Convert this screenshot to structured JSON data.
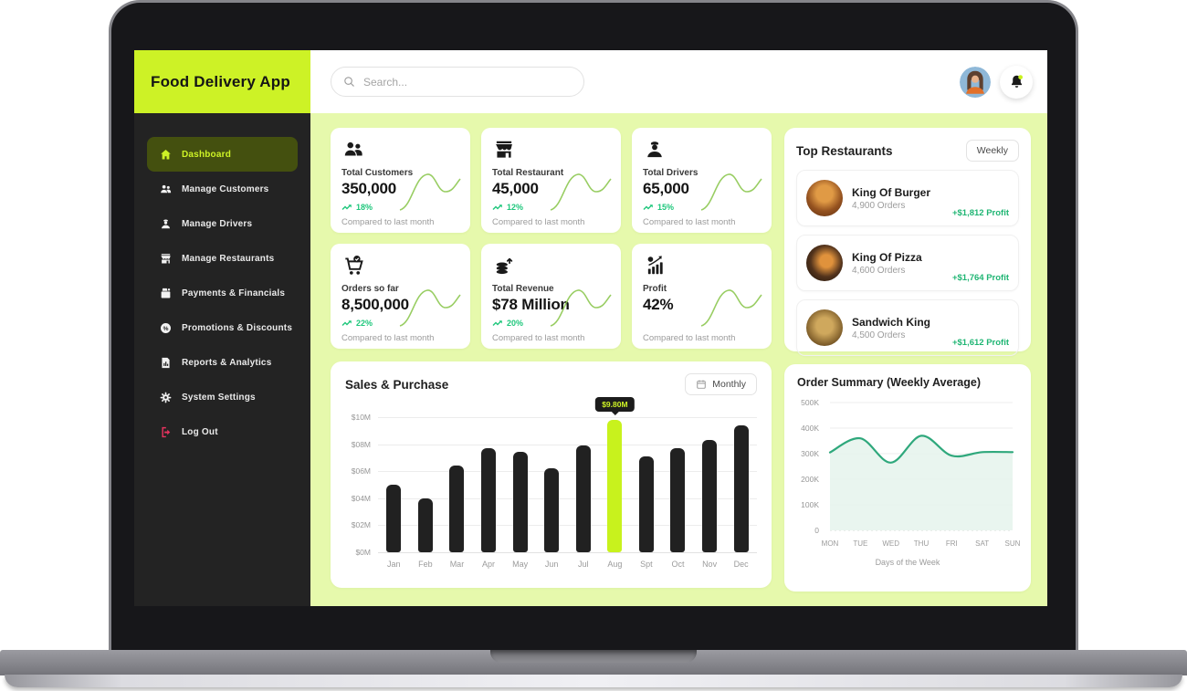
{
  "sidebar": {
    "logo": "Food Delivery App",
    "items": [
      {
        "label": "Dashboard",
        "icon": "home-icon",
        "active": true
      },
      {
        "label": "Manage Customers",
        "icon": "users-icon"
      },
      {
        "label": "Manage Drivers",
        "icon": "driver-icon"
      },
      {
        "label": "Manage Restaurants",
        "icon": "store-icon"
      },
      {
        "label": "Payments & Financials",
        "icon": "register-icon"
      },
      {
        "label": "Promotions & Discounts",
        "icon": "percent-icon"
      },
      {
        "label": "Reports & Analytics",
        "icon": "report-icon"
      },
      {
        "label": "System Settings",
        "icon": "gear-icon"
      },
      {
        "label": "Log Out",
        "icon": "logout-icon"
      }
    ]
  },
  "topbar": {
    "search_placeholder": "Search...",
    "icons": [
      "search-icon",
      "user-avatar",
      "bell-icon"
    ]
  },
  "stats": [
    {
      "icon": "customers-icon",
      "label": "Total Customers",
      "value": "350,000",
      "change": "18%",
      "note": "Compared to last month"
    },
    {
      "icon": "storefront-icon",
      "label": "Total Restaurant",
      "value": "45,000",
      "change": "12%",
      "note": "Compared to last month"
    },
    {
      "icon": "driver-icon",
      "label": "Total Drivers",
      "value": "65,000",
      "change": "15%",
      "note": "Compared to last month"
    },
    {
      "icon": "cart-check-icon",
      "label": "Orders so far",
      "value": "8,500,000",
      "change": "22%",
      "note": "Compared to last month"
    },
    {
      "icon": "coins-icon",
      "label": "Total Revenue",
      "value": "$78 Million",
      "change": "20%",
      "note": "Compared to last month"
    },
    {
      "icon": "profit-chart-icon",
      "label": "Profit",
      "value": "42%",
      "note": "Compared to last month"
    }
  ],
  "top_restaurants": {
    "title": "Top Restaurants",
    "filter_label": "Weekly",
    "items": [
      {
        "name": "King Of Burger",
        "orders": "4,900 Orders",
        "profit": "+$1,812 Profit"
      },
      {
        "name": "King Of Pizza",
        "orders": "4,600 Orders",
        "profit": "+$1,764 Profit"
      },
      {
        "name": "Sandwich King",
        "orders": "4,500 Orders",
        "profit": "+$1,612 Profit"
      }
    ]
  },
  "chart_data": [
    {
      "type": "bar",
      "title": "Sales & Purchase",
      "filter_label": "Monthly",
      "categories": [
        "Jan",
        "Feb",
        "Mar",
        "Apr",
        "May",
        "Jun",
        "Jul",
        "Aug",
        "Spt",
        "Oct",
        "Nov",
        "Dec"
      ],
      "values": [
        5.0,
        4.0,
        6.4,
        7.7,
        7.4,
        6.2,
        7.9,
        9.8,
        7.1,
        7.7,
        8.3,
        9.4
      ],
      "unit": "M USD",
      "highlight_index": 7,
      "tooltip": "$9.80M",
      "y_ticks": [
        "$10M",
        "$08M",
        "$06M",
        "$04M",
        "$02M",
        "$0M"
      ],
      "ylim": [
        0,
        10
      ],
      "grid": true,
      "legend": false
    },
    {
      "type": "area",
      "title": "Order Summary (Weekly Average)",
      "categories": [
        "MON",
        "TUE",
        "WED",
        "THU",
        "FRI",
        "SAT",
        "SUN"
      ],
      "values": [
        305,
        360,
        265,
        370,
        292,
        306,
        306
      ],
      "unit": "K orders",
      "xlabel": "Days of the Week",
      "y_ticks": [
        "500K",
        "400K",
        "300K",
        "200K",
        "100K",
        "0"
      ],
      "ylim": [
        0,
        500
      ],
      "grid": true,
      "legend": false
    }
  ],
  "colors": {
    "accent_lime": "#cdf226",
    "pale_lime": "#e6f9ac",
    "sidebar_dark": "#232323",
    "active_olive": "#44500f",
    "positive_green": "#1fc77c",
    "chart_line_green": "#2fa87c",
    "bar_dark": "#212121",
    "logout_red": "#e8335e"
  }
}
